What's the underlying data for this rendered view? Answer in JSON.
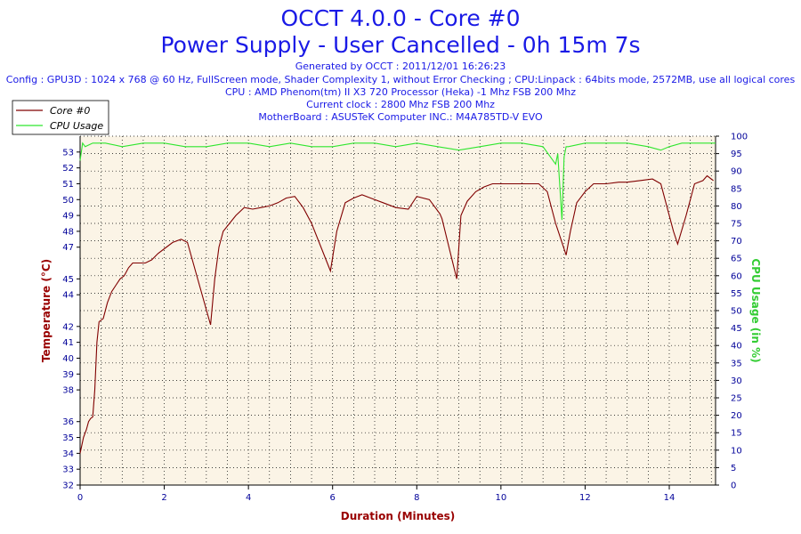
{
  "window": {
    "title_line1": "OCCT 4.0.0 - Core #0",
    "title_line2": "Power Supply - User Cancelled - 0h 15m 7s",
    "info_lines": [
      "Generated by OCCT : 2011/12/01 16:26:23",
      "Config : GPU3D : 1024 x 768 @ 60 Hz, FullScreen mode, Shader Complexity 1, without Error Checking ; CPU:Linpack : 64bits mode, 2572MB, use all logical cores",
      "CPU : AMD Phenom(tm) II X3 720 Processor (Heka) -1 Mhz FSB 200 Mhz",
      "Current clock : 2800 Mhz FSB 200 Mhz",
      "MotherBoard : ASUSTeK Computer INC.: M4A785TD-V EVO"
    ]
  },
  "chart_data": {
    "type": "line",
    "xlabel": "Duration (Minutes)",
    "ylabel": "Temperature (°C)",
    "y2label": "CPU Usage (in %)",
    "xlim": [
      0,
      15.1
    ],
    "ylim": [
      32,
      54
    ],
    "y2lim": [
      0,
      100
    ],
    "x_ticks": [
      0,
      2,
      4,
      6,
      8,
      10,
      12,
      14
    ],
    "y_ticks": [
      32,
      33,
      34,
      35,
      36,
      38,
      39,
      40,
      41,
      42,
      44,
      45,
      47,
      48,
      49,
      50,
      51,
      52,
      53
    ],
    "y2_ticks": [
      0,
      5,
      10,
      15,
      20,
      25,
      30,
      35,
      40,
      45,
      50,
      55,
      60,
      65,
      70,
      75,
      80,
      85,
      90,
      95,
      100
    ],
    "legend_position": "top-left",
    "grid": true,
    "colors": {
      "temperature": "#800000",
      "cpu_usage": "#2ee62e",
      "title": "#1a1ae6",
      "axis_label_left": "#990000",
      "axis_label_right": "#33cc33",
      "tick_text": "#000099",
      "plot_background": "#fbf4e6",
      "grid": "#000000"
    },
    "series": [
      {
        "name": "Core #0",
        "axis": "left",
        "x": [
          0.0,
          0.08,
          0.15,
          0.2,
          0.25,
          0.3,
          0.35,
          0.4,
          0.45,
          0.55,
          0.65,
          0.75,
          0.85,
          0.95,
          1.05,
          1.15,
          1.25,
          1.4,
          1.55,
          1.7,
          1.85,
          2.0,
          2.2,
          2.4,
          2.55,
          3.1,
          3.2,
          3.3,
          3.4,
          3.55,
          3.7,
          3.9,
          4.1,
          4.3,
          4.5,
          4.7,
          4.9,
          5.1,
          5.3,
          5.5,
          5.95,
          6.1,
          6.3,
          6.5,
          6.7,
          6.9,
          7.2,
          7.5,
          7.8,
          8.0,
          8.3,
          8.55,
          8.6,
          8.95,
          9.05,
          9.2,
          9.4,
          9.6,
          9.8,
          10.0,
          10.3,
          10.6,
          10.9,
          11.1,
          11.3,
          11.55,
          11.65,
          11.8,
          12.0,
          12.2,
          12.5,
          12.8,
          13.0,
          13.3,
          13.6,
          13.8,
          14.1,
          14.2,
          14.4,
          14.6,
          14.8,
          14.9,
          15.05
        ],
        "values": [
          34.0,
          35.0,
          35.5,
          36.0,
          36.2,
          36.3,
          38.0,
          41.0,
          42.3,
          42.5,
          43.5,
          44.2,
          44.6,
          45.0,
          45.2,
          45.7,
          46.0,
          46.0,
          46.0,
          46.2,
          46.6,
          46.9,
          47.3,
          47.5,
          47.3,
          42.1,
          45.0,
          47.0,
          48.0,
          48.5,
          49.0,
          49.5,
          49.4,
          49.5,
          49.6,
          49.8,
          50.1,
          50.2,
          49.5,
          48.5,
          45.5,
          48.0,
          49.8,
          50.1,
          50.3,
          50.1,
          49.8,
          49.5,
          49.4,
          50.2,
          50.0,
          49.1,
          48.8,
          45.0,
          49.0,
          49.9,
          50.5,
          50.8,
          51.0,
          51.0,
          51.0,
          51.0,
          51.0,
          50.5,
          48.5,
          46.5,
          48.0,
          49.8,
          50.5,
          51.0,
          51.0,
          51.1,
          51.1,
          51.2,
          51.3,
          51.0,
          48.0,
          47.2,
          49.0,
          51.0,
          51.2,
          51.5,
          51.2
        ]
      },
      {
        "name": "CPU Usage",
        "axis": "right",
        "x": [
          0.0,
          0.06,
          0.12,
          0.3,
          0.6,
          1.0,
          1.5,
          2.0,
          2.5,
          3.0,
          3.5,
          4.0,
          4.5,
          5.0,
          5.5,
          6.0,
          6.5,
          7.0,
          7.5,
          8.0,
          8.5,
          9.0,
          9.5,
          10.0,
          10.5,
          11.0,
          11.3,
          11.35,
          11.45,
          11.5,
          11.55,
          11.6,
          12.0,
          12.5,
          13.0,
          13.5,
          13.8,
          14.0,
          14.3,
          14.6,
          15.0,
          15.1
        ],
        "values": [
          93,
          98,
          97,
          98,
          98,
          97,
          98,
          98,
          97,
          97,
          98,
          98,
          97,
          98,
          97,
          97,
          98,
          98,
          97,
          98,
          97,
          96,
          97,
          98,
          98,
          97,
          92,
          95,
          76,
          94,
          97,
          97,
          98,
          98,
          98,
          97,
          96,
          97,
          98,
          98,
          98,
          98
        ]
      }
    ]
  }
}
